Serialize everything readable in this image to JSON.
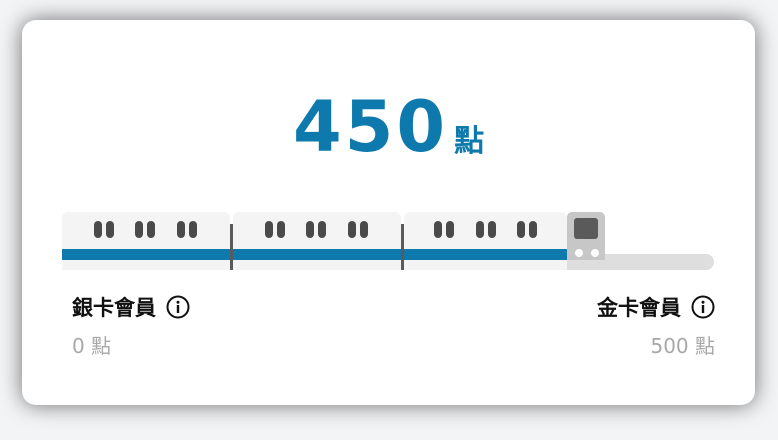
{
  "points": {
    "value": "450",
    "unit": "點"
  },
  "progress": {
    "current": 450,
    "max": 500,
    "fraction": 0.9
  },
  "tiers": {
    "silver": {
      "label": "銀卡會員",
      "points_label": "0 點",
      "icon": "info-icon"
    },
    "gold": {
      "label": "金卡會員",
      "points_label": "500 點",
      "icon": "info-icon"
    }
  },
  "colors": {
    "accent": "#0d79ad",
    "track": "#dedede",
    "car": "#f4f4f4",
    "window": "#4a4a4a",
    "muted_text": "#a8a8a8"
  }
}
